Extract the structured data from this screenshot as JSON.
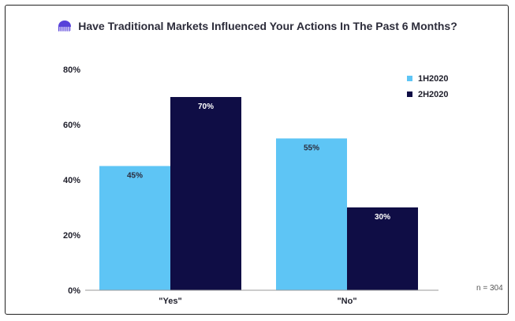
{
  "title": "Have Traditional Markets Influenced Your Actions In The Past 6 Months?",
  "note": "n = 304",
  "logo_icon": "kraken-logo-icon",
  "colors": {
    "series1": "#5ec5f5",
    "series2": "#0f0d45",
    "series1_label": "#2a2a3a",
    "series2_label": "#ffffff",
    "accent": "#5741d9"
  },
  "chart_data": {
    "type": "bar",
    "title": "Have Traditional Markets Influenced Your Actions In The Past 6 Months?",
    "categories": [
      "\"Yes\"",
      "\"No\""
    ],
    "series": [
      {
        "name": "1H2020",
        "values": [
          45,
          55
        ]
      },
      {
        "name": "2H2020",
        "values": [
          70,
          30
        ]
      }
    ],
    "data_labels": [
      [
        "45%",
        "55%"
      ],
      [
        "70%",
        "30%"
      ]
    ],
    "yticks": [
      "0%",
      "20%",
      "40%",
      "60%",
      "80%"
    ],
    "ylim": [
      0,
      80
    ],
    "xlabel": "",
    "ylabel": "",
    "grid": false,
    "legend": "top-right"
  }
}
